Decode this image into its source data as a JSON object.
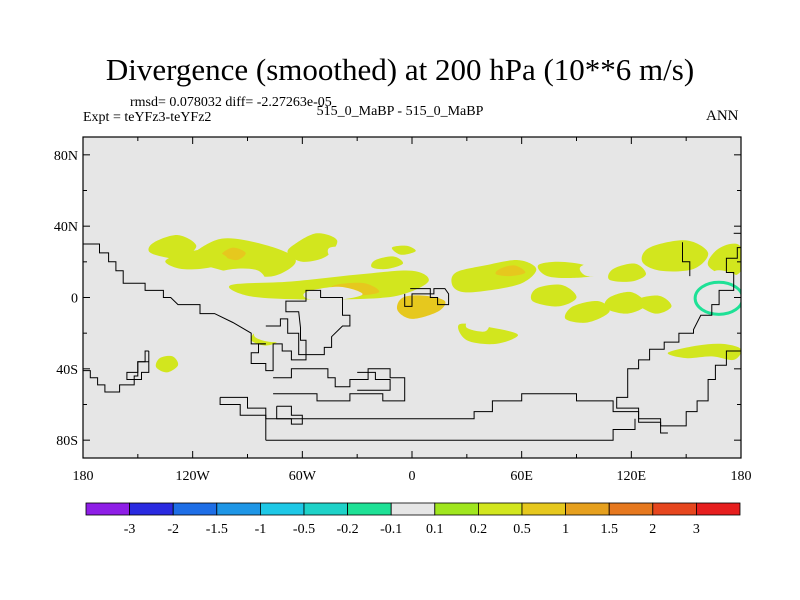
{
  "chart_data": {
    "type": "contour-map",
    "title": "Divergence (smoothed) at 200 hPa (10**6 m/s)",
    "stats": "rmsd= 0.078032 diff= -2.27263e-05",
    "experiment": "Expt = teYFz3-teYFz2",
    "case": "515_0_MaBP - 515_0_MaBP",
    "season": "ANN",
    "x_ticks": [
      "180",
      "120W",
      "60W",
      "0",
      "60E",
      "120E",
      "180"
    ],
    "x_range_deg": [
      -180,
      180
    ],
    "y_ticks": [
      "80N",
      "40N",
      "0",
      "40S",
      "80S"
    ],
    "y_range_deg": [
      -90,
      90
    ],
    "colorbar_labels": [
      "-3",
      "-2",
      "-1.5",
      "-1",
      "-0.5",
      "-0.2",
      "-0.1",
      "0.1",
      "0.2",
      "0.5",
      "1",
      "1.5",
      "2",
      "3"
    ],
    "colorbar_colors": [
      "#8e1ee6",
      "#2a2ae0",
      "#1e6ee6",
      "#1e96e6",
      "#1ec8e6",
      "#1ed2c8",
      "#1ee196",
      "#e6e6e6",
      "#a0e61e",
      "#d2e61e",
      "#e6c81e",
      "#e6a01e",
      "#e6781e",
      "#e6461e",
      "#e61e1e"
    ],
    "background_level_color": "#e6e6e6",
    "regions": [
      {
        "level": 0.2,
        "lon": [
          -141,
          -128,
          -118,
          -126,
          -137,
          -144
        ],
        "lat": [
          31,
          35,
          29,
          22,
          23,
          26
        ]
      },
      {
        "level": 0.2,
        "lon": [
          -118,
          -104,
          -86,
          -68,
          -64,
          -76,
          -94,
          -110,
          -120
        ],
        "lat": [
          26,
          33,
          31,
          25,
          19,
          12,
          13,
          17,
          20
        ]
      },
      {
        "level": 0.5,
        "lon": [
          -104,
          -98,
          -91,
          -96
        ],
        "lat": [
          24,
          28,
          25,
          21
        ]
      },
      {
        "level": -0.1,
        "lon": [
          -112,
          -98,
          -84,
          -80,
          -90,
          -106,
          -116
        ],
        "lat": [
          12,
          16,
          15,
          7,
          3,
          3,
          6
        ]
      },
      {
        "level": -0.1,
        "lon": [
          -140,
          -125,
          -119,
          -130,
          -141
        ],
        "lat": [
          17,
          20,
          10,
          7,
          11
        ]
      },
      {
        "level": -0.1,
        "lon": [
          -173,
          -162,
          -149,
          -155,
          -166,
          -175
        ],
        "lat": [
          -6,
          -5,
          -14,
          -23,
          -23,
          -15
        ]
      },
      {
        "level": 0.2,
        "lon": [
          -64,
          -52,
          -41,
          -47,
          -60,
          -68
        ],
        "lat": [
          30,
          36,
          32,
          23,
          20,
          25
        ]
      },
      {
        "level": -0.1,
        "lon": [
          -155,
          -146,
          -143,
          -150,
          -157
        ],
        "lat": [
          -27,
          -25,
          -31,
          -35,
          -32
        ]
      },
      {
        "level": 0.2,
        "lon": [
          -138,
          -131,
          -128,
          -134,
          -140
        ],
        "lat": [
          -34,
          -33,
          -38,
          -42,
          -39
        ]
      },
      {
        "level": -0.1,
        "lon": [
          -101,
          -94,
          -96,
          -103
        ],
        "lat": [
          -9,
          -7,
          -13,
          -13
        ]
      },
      {
        "level": 0.2,
        "lon": [
          -85,
          -77,
          -73,
          -80,
          -88
        ],
        "lat": [
          -19,
          -18,
          -24,
          -27,
          -24
        ]
      },
      {
        "level": 0.2,
        "lon": [
          -99,
          -66,
          -28,
          0,
          9,
          -8,
          -36,
          -64,
          -90
        ],
        "lat": [
          7,
          9,
          13,
          15,
          9,
          1,
          -1,
          -1,
          1
        ]
      },
      {
        "level": 0.5,
        "lon": [
          -42,
          -26,
          -18,
          -32,
          -44
        ],
        "lat": [
          7,
          8,
          3,
          1,
          3
        ]
      },
      {
        "level": -0.1,
        "lon": [
          -58,
          -40,
          -27,
          -38,
          -56
        ],
        "lat": [
          3,
          6,
          2,
          -1,
          -1
        ]
      },
      {
        "level": -0.1,
        "lon": [
          -83,
          -67,
          -62,
          -76,
          -86
        ],
        "lat": [
          -17,
          -16,
          -23,
          -25,
          -22
        ]
      },
      {
        "level": -0.1,
        "lon": [
          -45,
          -30,
          -27,
          -43
        ],
        "lat": [
          28,
          28,
          24,
          22
        ]
      },
      {
        "level": -0.1,
        "lon": [
          -30,
          -19,
          -14,
          -22,
          -32
        ],
        "lat": [
          25,
          27,
          22,
          18,
          20
        ]
      },
      {
        "level": 0.2,
        "lon": [
          -20,
          -10,
          -5,
          -14,
          -22
        ],
        "lat": [
          21,
          23,
          19,
          16,
          17
        ]
      },
      {
        "level": 0.2,
        "lon": [
          -11,
          -3,
          2,
          -6
        ],
        "lat": [
          28,
          29,
          26,
          24
        ]
      },
      {
        "level": -0.1,
        "lon": [
          22,
          34,
          37,
          30,
          20
        ],
        "lat": [
          13,
          15,
          9,
          6,
          8
        ]
      },
      {
        "level": 0.5,
        "lon": [
          -5,
          7,
          18,
          14,
          0,
          -8
        ],
        "lat": [
          0,
          1,
          -2,
          -8,
          -12,
          -7
        ]
      },
      {
        "level": 0.2,
        "lon": [
          24,
          40,
          58,
          68,
          60,
          42,
          28,
          22
        ],
        "lat": [
          14,
          18,
          21,
          16,
          8,
          4,
          3,
          7
        ]
      },
      {
        "level": 0.5,
        "lon": [
          48,
          56,
          62,
          54,
          46
        ],
        "lat": [
          16,
          18,
          14,
          12,
          13
        ]
      },
      {
        "level": 0.2,
        "lon": [
          26,
          44,
          58,
          46,
          30
        ],
        "lat": [
          -15,
          -17,
          -21,
          -26,
          -24
        ]
      },
      {
        "level": -0.1,
        "lon": [
          32,
          42,
          40,
          30
        ],
        "lat": [
          -12,
          -13,
          -19,
          -17
        ]
      },
      {
        "level": 0.2,
        "lon": [
          69,
          80,
          95,
          102,
          89,
          74
        ],
        "lat": [
          18,
          20,
          18,
          13,
          11,
          12
        ]
      },
      {
        "level": -0.1,
        "lon": [
          92,
          102,
          108,
          96
        ],
        "lat": [
          17,
          20,
          14,
          12
        ]
      },
      {
        "level": 0.2,
        "lon": [
          68,
          82,
          90,
          80,
          66
        ],
        "lat": [
          5,
          7,
          0,
          -5,
          -2
        ]
      },
      {
        "level": 0.2,
        "lon": [
          88,
          102,
          108,
          96,
          84
        ],
        "lat": [
          -5,
          -2,
          -8,
          -14,
          -12
        ]
      },
      {
        "level": 0.2,
        "lon": [
          108,
          120,
          128,
          118,
          106
        ],
        "lat": [
          0,
          3,
          -4,
          -9,
          -6
        ]
      },
      {
        "level": 0.2,
        "lon": [
          110,
          122,
          128,
          120,
          108
        ],
        "lat": [
          16,
          19,
          13,
          9,
          10
        ]
      },
      {
        "level": 0.2,
        "lon": [
          130,
          150,
          162,
          154,
          136,
          126
        ],
        "lat": [
          28,
          32,
          25,
          16,
          15,
          20
        ]
      },
      {
        "level": 0.2,
        "lon": [
          122,
          135,
          142,
          133
        ],
        "lat": [
          -2,
          1,
          -5,
          -9
        ]
      },
      {
        "level": -0.1,
        "lon": [
          125,
          136,
          142,
          132,
          122
        ],
        "lat": [
          -22,
          -20,
          -27,
          -32,
          -30
        ]
      },
      {
        "level": -0.1,
        "lon": [
          88,
          98,
          104,
          96,
          86
        ],
        "lat": [
          -26,
          -23,
          -29,
          -34,
          -32
        ]
      },
      {
        "level": -0.1,
        "lon": [
          138,
          152,
          162,
          178,
          180,
          172,
          158,
          146,
          136
        ],
        "lat": [
          -15,
          -10,
          -15,
          -15,
          -22,
          -28,
          -24,
          -21,
          -20
        ]
      },
      {
        "level": 0.2,
        "lon": [
          140,
          156,
          170,
          180,
          176,
          164,
          150
        ],
        "lat": [
          -31,
          -27,
          -26,
          -29,
          -35,
          -33,
          -34
        ]
      },
      {
        "level": 0.2,
        "lon": [
          166,
          174,
          180,
          180,
          172,
          162
        ],
        "lat": [
          26,
          30,
          28,
          15,
          12,
          18
        ]
      },
      {
        "level": -0.1,
        "lon": [
          166,
          178,
          180,
          172,
          164
        ],
        "lat": [
          15,
          12,
          2,
          0,
          6
        ]
      },
      {
        "level": -0.1,
        "lon": [
          -180,
          -176,
          -171,
          -177,
          -180
        ],
        "lat": [
          10,
          8,
          2,
          -1,
          0
        ]
      },
      {
        "level": 0.2,
        "lon": [
          -128,
          -112,
          -101,
          -110,
          -126,
          -135
        ],
        "lat": [
          24,
          27,
          22,
          17,
          16,
          20
        ]
      }
    ],
    "ring": {
      "level": -0.1,
      "center_lon": 169,
      "center_lat": -1,
      "radius_lon_deg": [
        17,
        12,
        13
      ],
      "radius_lat_deg": [
        12,
        8,
        9
      ]
    },
    "outlines": [
      {
        "lon": [
          -180,
          -171,
          -171,
          -166,
          -166,
          -162,
          -162,
          -158,
          -158,
          -146,
          -146,
          -136,
          -136,
          -132,
          -128,
          -116,
          -116,
          -108,
          -98,
          -88,
          -88,
          -80
        ],
        "lat": [
          30,
          30,
          25,
          25,
          20,
          20,
          15,
          15,
          8,
          8,
          4,
          4,
          0,
          0,
          -4,
          -4,
          -9,
          -9,
          -14,
          -20,
          -26,
          -26
        ]
      },
      {
        "lon": [
          -80,
          -84,
          -84,
          -88,
          -88,
          -80,
          -80,
          -76,
          -76,
          -71,
          -71,
          -66,
          -66,
          -58,
          -58,
          -61,
          -61,
          -62,
          -69,
          -69,
          -58,
          -58,
          -50,
          -50,
          -38,
          -38,
          -34,
          -34,
          -38,
          -44,
          -44,
          -48,
          -48,
          -62,
          -62,
          -68,
          -68,
          -72,
          -72,
          -80
        ],
        "lat": [
          -26,
          -26,
          -31,
          -31,
          -37,
          -37,
          -41,
          -41,
          -26,
          -26,
          -30,
          -30,
          -35,
          -35,
          -24,
          -24,
          -17,
          -8,
          -8,
          -2,
          -2,
          4,
          4,
          0,
          0,
          -10,
          -10,
          -16,
          -16,
          -22,
          -28,
          -28,
          -32,
          -32,
          -20,
          -20,
          -12,
          -12,
          -16,
          -16
        ]
      },
      {
        "lon": [
          -1,
          7,
          10,
          10,
          14,
          14,
          20,
          20,
          18,
          12,
          12,
          0,
          0,
          -4,
          -4
        ],
        "lat": [
          5,
          5,
          5,
          0,
          0,
          -4,
          -4,
          2,
          5,
          5,
          2,
          2,
          -5,
          -5,
          2
        ]
      },
      {
        "lon": [
          -76,
          -66,
          -66,
          -52,
          -46,
          -46,
          -42,
          -42,
          -34,
          -34,
          -24,
          -24,
          -12,
          -12,
          -4,
          -4,
          -16,
          -16,
          -34,
          -34,
          -52,
          -52,
          -66,
          -76
        ],
        "lat": [
          -45,
          -45,
          -40,
          -40,
          -40,
          -45,
          -45,
          -50,
          -50,
          -46,
          -46,
          -40,
          -40,
          -45,
          -45,
          -58,
          -58,
          -54,
          -54,
          -58,
          -58,
          -54,
          -54,
          -54
        ]
      },
      {
        "lon": [
          -30,
          -20,
          -20,
          -12,
          -12,
          -30
        ],
        "lat": [
          -42,
          -42,
          -46,
          -46,
          -52,
          -52
        ]
      },
      {
        "lon": [
          180,
          178,
          178,
          172,
          172,
          176,
          176,
          168,
          168,
          164,
          164,
          158,
          154,
          154,
          146,
          146,
          138,
          138,
          130,
          130,
          124,
          124,
          118,
          118,
          112,
          112,
          124,
          124,
          136,
          136,
          150,
          150,
          156,
          156,
          162,
          162,
          166,
          166,
          172,
          172,
          180
        ],
        "lat": [
          28,
          28,
          22,
          22,
          14,
          14,
          4,
          4,
          -4,
          -4,
          -10,
          -10,
          -18,
          -20,
          -20,
          -25,
          -25,
          -29,
          -29,
          -35,
          -35,
          -40,
          -40,
          -56,
          -56,
          -62,
          -62,
          -68,
          -68,
          -72,
          -72,
          -64,
          -64,
          -58,
          -58,
          -46,
          -46,
          -38,
          -38,
          -30,
          -30
        ]
      },
      {
        "lon": [
          -180,
          -176,
          -176,
          -172,
          -172,
          -168,
          -168,
          -160,
          -160,
          -152,
          -152,
          -150,
          -150,
          -146,
          -146,
          -144
        ],
        "lat": [
          -41,
          -41,
          -45,
          -45,
          -49,
          -49,
          -53,
          -53,
          -49,
          -49,
          -44,
          -44,
          -36,
          -36,
          -30,
          -30
        ]
      },
      {
        "lon": [
          -144,
          -144,
          -150,
          -150,
          -156,
          -156,
          -148,
          -148,
          -144,
          -144
        ],
        "lat": [
          -30,
          -36,
          -36,
          -42,
          -42,
          -46,
          -46,
          -42,
          -42,
          -30
        ]
      },
      {
        "lon": [
          -105,
          -90,
          -90,
          -80,
          -80,
          34,
          34,
          44,
          44,
          60,
          60,
          90,
          90,
          110,
          110,
          124,
          124,
          136,
          136,
          140
        ],
        "lat": [
          -56,
          -56,
          -62,
          -62,
          -68,
          -68,
          -64,
          -64,
          -58,
          -58,
          -54,
          -54,
          -58,
          -58,
          -64,
          -64,
          -70,
          -70,
          -76,
          -76
        ]
      },
      {
        "lon": [
          -74,
          -66,
          -66,
          -60,
          -60,
          -66,
          -66,
          -74,
          -74
        ],
        "lat": [
          -61,
          -61,
          -66,
          -66,
          -71,
          -71,
          -68,
          -68,
          -61
        ]
      },
      {
        "lon": [
          -105,
          -105,
          -94,
          -94,
          -80,
          -80
        ],
        "lat": [
          -56,
          -60,
          -60,
          -66,
          -66,
          -80
        ]
      },
      {
        "lon": [
          -80,
          110,
          110,
          122,
          122
        ],
        "lat": [
          -80,
          -80,
          -74,
          -74,
          -68
        ]
      },
      {
        "lon": [
          148,
          148,
          152,
          152
        ],
        "lat": [
          31,
          20,
          20,
          12
        ]
      },
      {
        "lon": [
          176,
          180
        ],
        "lat": [
          36,
          36
        ]
      }
    ]
  }
}
